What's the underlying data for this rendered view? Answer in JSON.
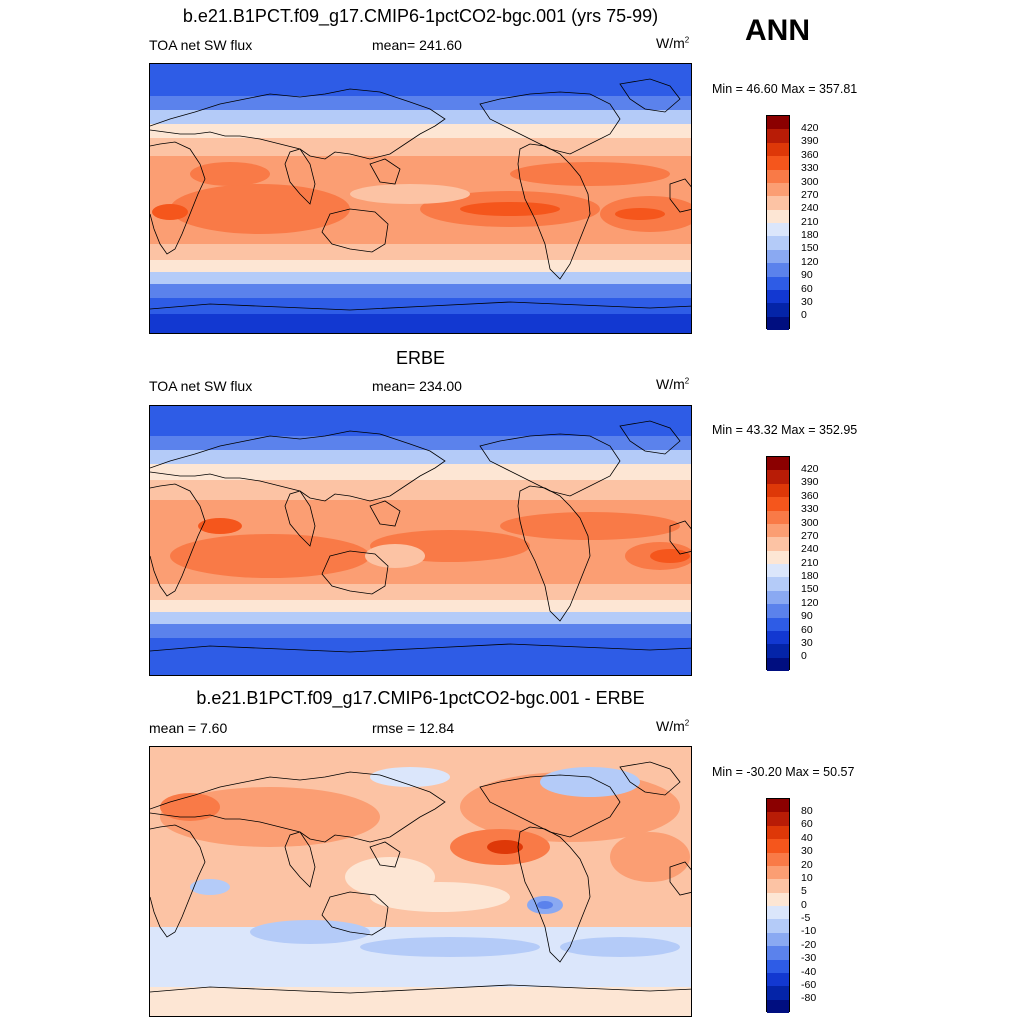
{
  "season": "ANN",
  "panels": [
    {
      "title": "b.e21.B1PCT.f09_g17.CMIP6-1pctCO2-bgc.001 (yrs 75-99)",
      "left": "TOA net SW flux",
      "center": "mean= 241.60",
      "units_base": "W/m",
      "units_exp": "2",
      "minmax": "Min =  46.60 Max = 357.81",
      "colorbar_labels": [
        "420",
        "390",
        "360",
        "330",
        "300",
        "270",
        "240",
        "210",
        "180",
        "150",
        "120",
        "90",
        "60",
        "30",
        "0"
      ]
    },
    {
      "title": "ERBE",
      "left": "TOA net SW flux",
      "center": "mean= 234.00",
      "units_base": "W/m",
      "units_exp": "2",
      "minmax": "Min =  43.32 Max = 352.95",
      "colorbar_labels": [
        "420",
        "390",
        "360",
        "330",
        "300",
        "270",
        "240",
        "210",
        "180",
        "150",
        "120",
        "90",
        "60",
        "30",
        "0"
      ]
    },
    {
      "title": "b.e21.B1PCT.f09_g17.CMIP6-1pctCO2-bgc.001 - ERBE",
      "left": "mean =   7.60",
      "center": "rmse =  12.84",
      "units_base": "W/m",
      "units_exp": "2",
      "minmax": "Min = -30.20 Max =  50.57",
      "colorbar_labels": [
        "80",
        "60",
        "40",
        "30",
        "20",
        "10",
        "5",
        "0",
        "-5",
        "-10",
        "-20",
        "-30",
        "-40",
        "-60",
        "-80"
      ]
    }
  ],
  "colors": {
    "colorbar": [
      "#8b0000",
      "#b81c06",
      "#de3808",
      "#f5561c",
      "#f97a47",
      "#fb9e73",
      "#fcc3a4",
      "#fde6d4",
      "#dbe6fb",
      "#b4cbf8",
      "#8aa9f2",
      "#5b82ec",
      "#2e5ce6",
      "#1238d1",
      "#0424a8",
      "#000e80"
    ]
  }
}
